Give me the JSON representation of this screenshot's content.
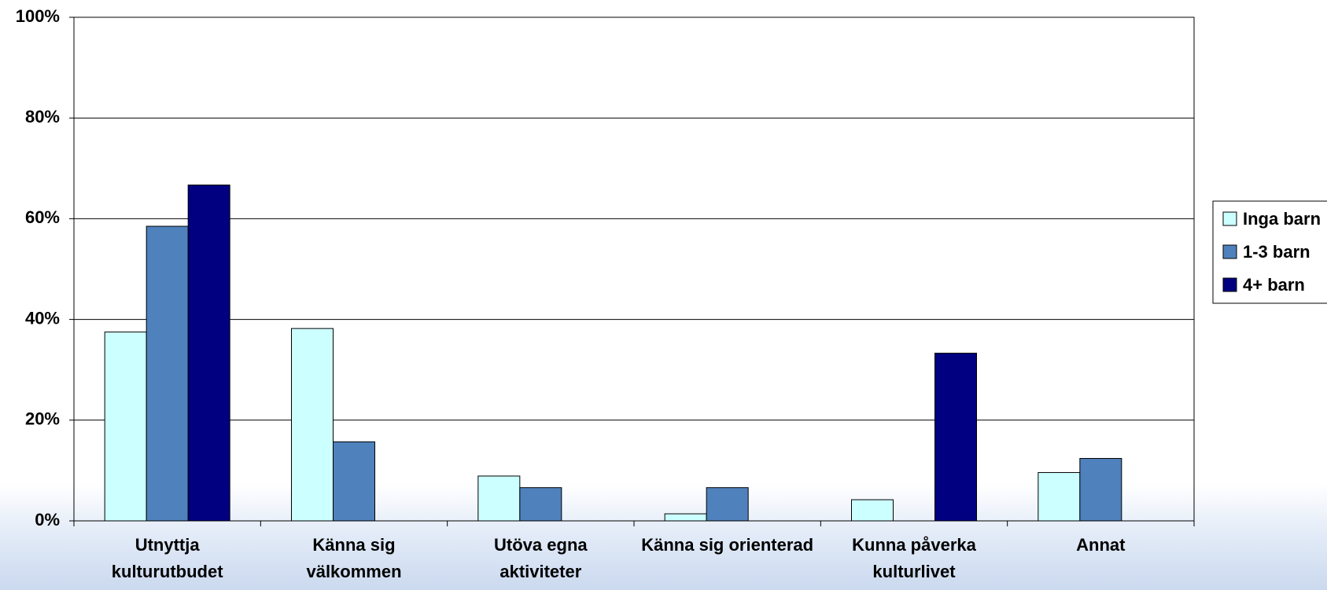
{
  "chart_data": {
    "type": "bar",
    "categories": [
      "Utnyttja kulturutbudet",
      "Känna sig välkommen",
      "Utöva egna aktiviteter",
      "Känna sig orienterad",
      "Kunna påverka kulturlivet",
      "Annat"
    ],
    "series": [
      {
        "name": "Inga barn",
        "color": "#ccffff",
        "values": [
          37.5,
          38.2,
          8.9,
          1.4,
          4.2,
          9.6
        ]
      },
      {
        "name": "1-3 barn",
        "color": "#4f81bd",
        "values": [
          58.5,
          15.7,
          6.6,
          6.6,
          0,
          12.4
        ]
      },
      {
        "name": "4+ barn",
        "color": "#000080",
        "values": [
          66.7,
          0,
          0,
          0,
          33.3,
          0
        ]
      }
    ],
    "ylim": [
      0,
      100
    ],
    "yticks": [
      {
        "value": 0,
        "label": "0%"
      },
      {
        "value": 20,
        "label": "20%"
      },
      {
        "value": 40,
        "label": "40%"
      },
      {
        "value": 60,
        "label": "60%"
      },
      {
        "value": 80,
        "label": "80%"
      },
      {
        "value": 100,
        "label": "100%"
      }
    ],
    "grid": true,
    "legend": "right"
  }
}
